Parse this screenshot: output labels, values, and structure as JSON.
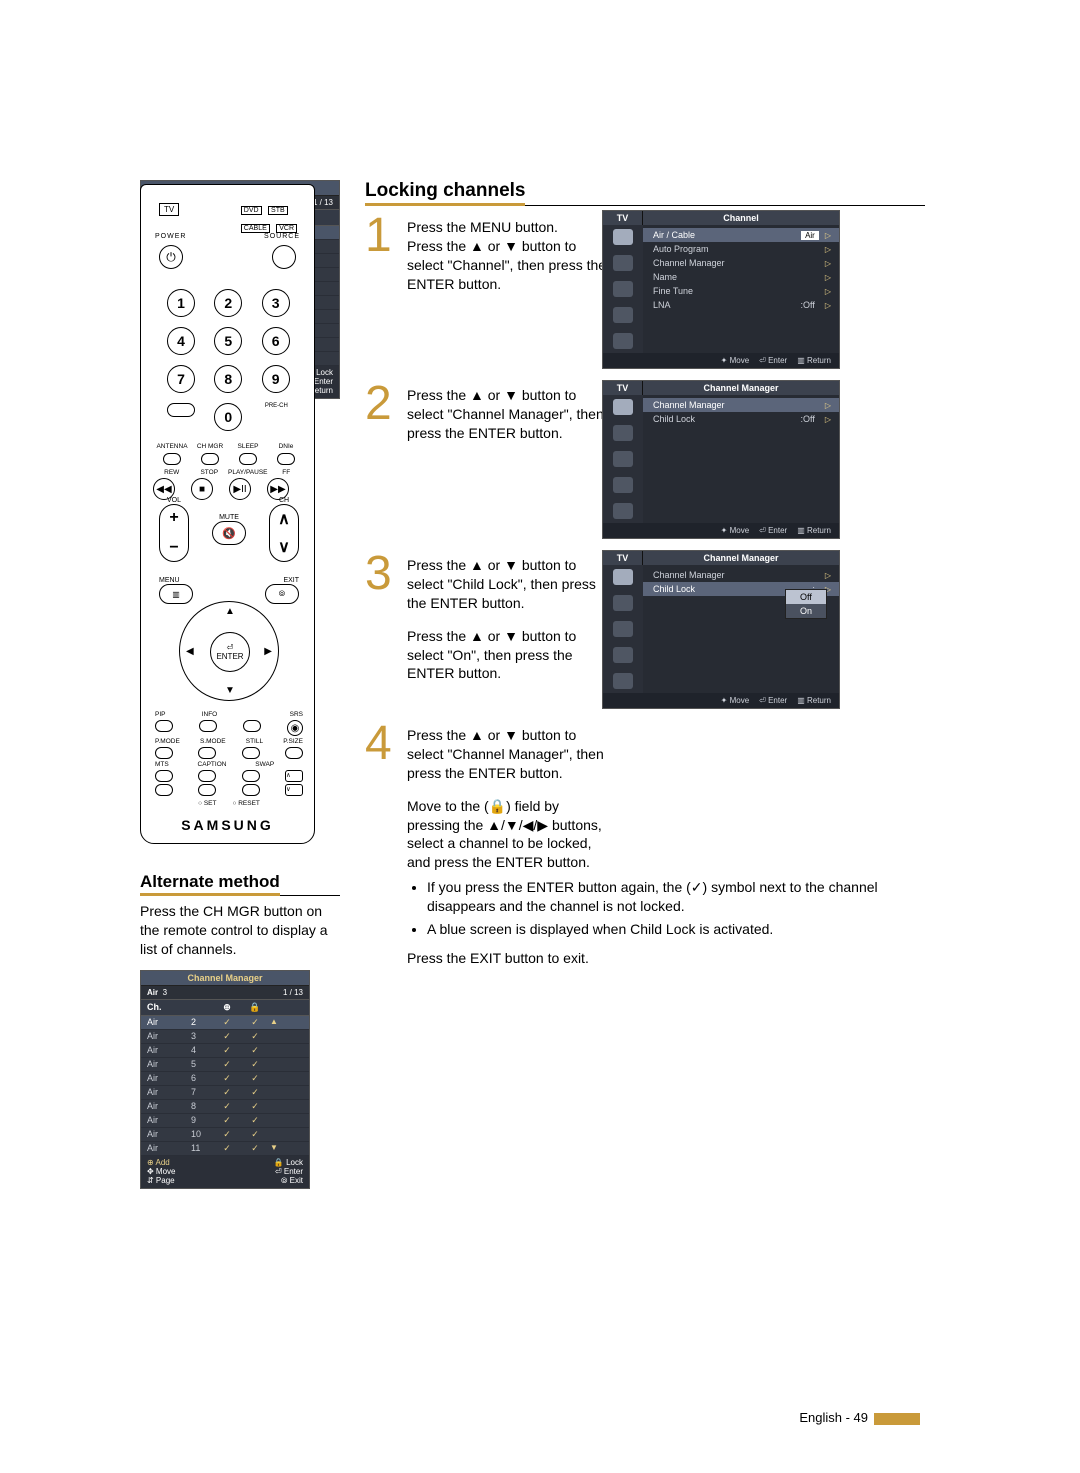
{
  "colors": {
    "accent": "#c99a3a",
    "osd_bg": "#272b33",
    "osd_bar": "#3c424e",
    "osd_sel": "#5b657a",
    "osd_text": "#cfd3db",
    "chmgr_title": "#e8d088"
  },
  "page_footer": {
    "label": "English - 49"
  },
  "remote": {
    "brand": "SAMSUNG",
    "labels": {
      "tv": "TV",
      "dvd": "DVD",
      "stb": "STB",
      "cable": "CABLE",
      "vcr": "VCR",
      "power": "POWER",
      "source": "SOURCE",
      "prech": "PRE-CH",
      "antenna": "ANTENNA",
      "chmgr": "CH MGR",
      "sleep": "SLEEP",
      "dnie": "DNIe",
      "rew": "REW",
      "stop": "STOP",
      "play": "PLAY/PAUSE",
      "ff": "FF",
      "vol": "VOL",
      "ch": "CH",
      "mute": "MUTE",
      "menu": "MENU",
      "exit": "EXIT",
      "enter": "ENTER",
      "pip": "PIP",
      "info": "INFO",
      "srs": "SRS",
      "pmode": "P.MODE",
      "smode": "S.MODE",
      "still": "STILL",
      "psize": "P.SIZE",
      "mts": "MTS",
      "caption": "CAPTION",
      "swap": "SWAP",
      "set": "SET",
      "reset": "RESET"
    },
    "numbers": [
      "1",
      "2",
      "3",
      "4",
      "5",
      "6",
      "7",
      "8",
      "9",
      "",
      "0",
      ""
    ]
  },
  "alternate": {
    "heading": "Alternate method",
    "text": "Press the CH MGR button on the remote control to display a list of channels."
  },
  "channel_manager_list": {
    "title": "Channel Manager",
    "source": "Air",
    "current": "3",
    "page": "1 / 13",
    "header": {
      "ch": "Ch.",
      "add": "⊕",
      "lock": "🔒"
    },
    "rows": [
      {
        "src": "Air",
        "num": "2",
        "add": "✓",
        "lock": "✓",
        "sel": true
      },
      {
        "src": "Air",
        "num": "3",
        "add": "✓",
        "lock": "✓"
      },
      {
        "src": "Air",
        "num": "4",
        "add": "✓",
        "lock": "✓"
      },
      {
        "src": "Air",
        "num": "5",
        "add": "✓",
        "lock": "✓"
      },
      {
        "src": "Air",
        "num": "6",
        "add": "✓",
        "lock": "✓"
      },
      {
        "src": "Air",
        "num": "7",
        "add": "✓",
        "lock": "✓"
      },
      {
        "src": "Air",
        "num": "8",
        "add": "✓",
        "lock": "✓"
      },
      {
        "src": "Air",
        "num": "9",
        "add": "✓",
        "lock": "✓"
      },
      {
        "src": "Air",
        "num": "10",
        "add": "✓",
        "lock": "✓"
      },
      {
        "src": "Air",
        "num": "11",
        "add": "✓",
        "lock": "✓"
      }
    ],
    "footer": {
      "add": "⊕ Add",
      "lock": "🔒 Lock",
      "move": "✥ Move",
      "enter": "⏎ Enter",
      "page": "⇵ Page",
      "exit": "⦾ Exit",
      "return": "⦾ Return"
    }
  },
  "section": {
    "title": "Locking channels"
  },
  "steps": {
    "s1": {
      "num": "1",
      "text": "Press the MENU button.\nPress the ▲ or ▼ button to select \"Channel\", then press the ENTER button."
    },
    "s2": {
      "num": "2",
      "text": "Press the ▲ or ▼ button to select \"Channel Manager\", then press the ENTER button."
    },
    "s3": {
      "num": "3",
      "text1": "Press the ▲ or ▼ button to select \"Child Lock\", then press the ENTER button.",
      "text2": "Press the ▲ or ▼ button to select \"On\", then press the ENTER button."
    },
    "s4": {
      "num": "4",
      "text1": "Press the ▲ or ▼ button to select \"Channel Manager\", then press the ENTER button.",
      "text2": "Move to the (🔒) field by pressing the ▲/▼/◀/▶ buttons, select a channel to be locked, and press the ENTER button.",
      "bullet1": "If you press the ENTER button again, the (✓) symbol next to the channel disappears and the channel is not locked.",
      "bullet2": "A blue screen is displayed when Child Lock is activated.",
      "exit": "Press the EXIT button to exit."
    }
  },
  "osd1": {
    "tv": "TV",
    "title": "Channel",
    "items": [
      {
        "k": "Air / Cable",
        "v": ":Air",
        "sel": true,
        "box": "Air"
      },
      {
        "k": "Auto Program"
      },
      {
        "k": "Channel Manager"
      },
      {
        "k": "Name"
      },
      {
        "k": "Fine Tune"
      },
      {
        "k": "LNA",
        "v": ":Off"
      }
    ],
    "footer": {
      "move": "✦ Move",
      "enter": "⏎ Enter",
      "return": "▥ Return"
    }
  },
  "osd2": {
    "tv": "TV",
    "title": "Channel Manager",
    "items": [
      {
        "k": "Channel Manager",
        "sel": true
      },
      {
        "k": "Child Lock",
        "v": ":Off"
      }
    ],
    "footer": {
      "move": "✦ Move",
      "enter": "⏎ Enter",
      "return": "▥ Return"
    }
  },
  "osd3": {
    "tv": "TV",
    "title": "Channel Manager",
    "items": [
      {
        "k": "Channel Manager"
      },
      {
        "k": "Child Lock",
        "v": ":",
        "sel": true
      }
    ],
    "dropdown": {
      "options": [
        "Off",
        "On"
      ],
      "selected": "Off"
    },
    "footer": {
      "move": "✦ Move",
      "enter": "⏎ Enter",
      "return": "▥ Return"
    }
  }
}
